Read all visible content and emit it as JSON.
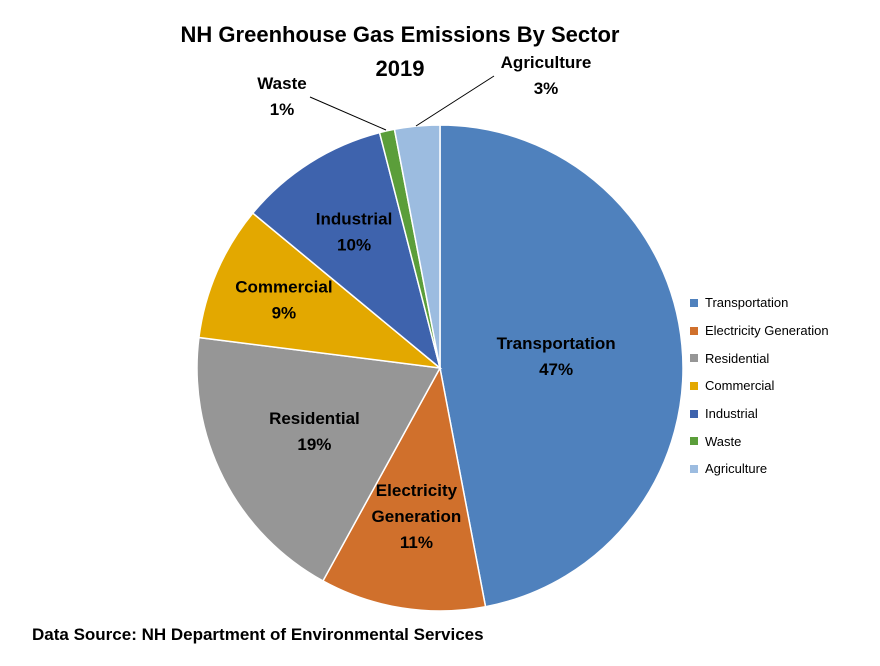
{
  "chart_data": {
    "type": "pie",
    "title_line1": "NH Greenhouse  Gas Emissions By Sector",
    "title_line2": "2019",
    "slices": [
      {
        "name": "Transportation",
        "value": 47,
        "label": "47%",
        "color": "#4f81bd"
      },
      {
        "name": "Electricity Generation",
        "value": 11,
        "label": "11%",
        "color": "#d0702c"
      },
      {
        "name": "Residential",
        "value": 19,
        "label": "19%",
        "color": "#969696"
      },
      {
        "name": "Commercial",
        "value": 9,
        "label": "9%",
        "color": "#e3a800"
      },
      {
        "name": "Industrial",
        "value": 10,
        "label": "10%",
        "color": "#3e63ad"
      },
      {
        "name": "Waste",
        "value": 1,
        "label": "1%",
        "color": "#5b9e3a"
      },
      {
        "name": "Agriculture",
        "value": 3,
        "label": "3%",
        "color": "#9cbce0"
      }
    ],
    "legend_position": "right"
  },
  "footer": {
    "source": "Data Source: NH Department of Environmental Services"
  }
}
